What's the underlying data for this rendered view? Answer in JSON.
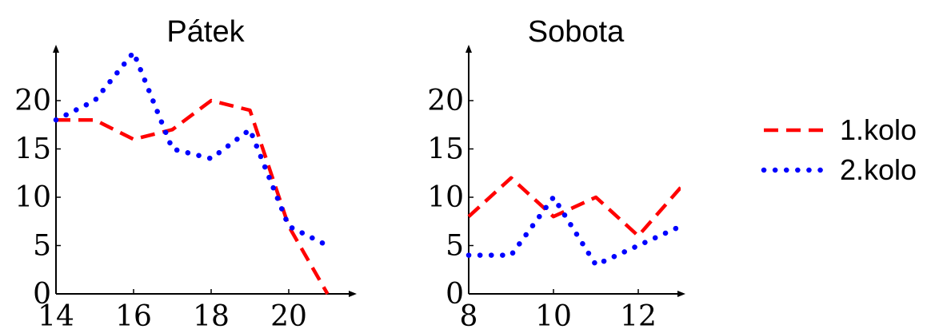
{
  "chart_data": [
    {
      "type": "line",
      "title": "Pátek",
      "x": [
        14,
        15,
        16,
        17,
        18,
        19,
        20,
        21
      ],
      "xticks": [
        14,
        16,
        18,
        20
      ],
      "yticks": [
        0,
        5,
        10,
        15,
        20
      ],
      "xlim": [
        14,
        21.8
      ],
      "ylim": [
        0,
        24.5
      ],
      "series": [
        {
          "name": "1.kolo",
          "values": [
            18,
            18,
            16,
            17,
            20,
            19,
            7,
            0
          ]
        },
        {
          "name": "2.kolo",
          "values": [
            18,
            20,
            25,
            15,
            14,
            17,
            7,
            5
          ]
        }
      ]
    },
    {
      "type": "line",
      "title": "Sobota",
      "x": [
        8,
        9,
        10,
        11,
        12,
        13
      ],
      "xticks": [
        8,
        10,
        12
      ],
      "yticks": [
        0,
        5,
        10,
        15,
        20
      ],
      "xlim": [
        8,
        13
      ],
      "ylim": [
        0,
        24.5
      ],
      "series": [
        {
          "name": "1.kolo",
          "values": [
            8,
            12,
            8,
            10,
            6,
            11
          ]
        },
        {
          "name": "2.kolo",
          "values": [
            4,
            4,
            10,
            3,
            5,
            7
          ]
        }
      ]
    }
  ],
  "legend": {
    "position": "right",
    "items": [
      {
        "label": "1.kolo",
        "color": "#ff0000",
        "style": "dashed"
      },
      {
        "label": "2.kolo",
        "color": "#0000ff",
        "style": "dotted"
      }
    ]
  },
  "colors": {
    "series1": "#ff0000",
    "series2": "#0000ff",
    "axis": "#000000"
  }
}
